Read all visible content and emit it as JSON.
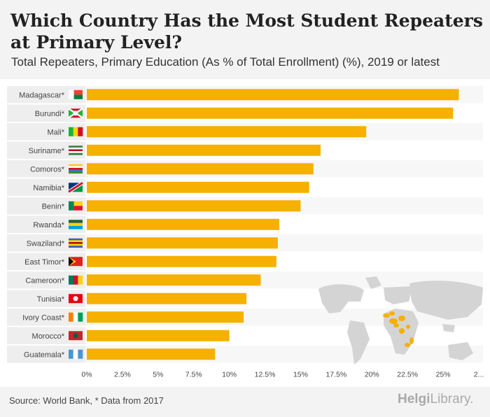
{
  "title": "Which Country Has the Most Student Repeaters at Primary Level?",
  "subtitle": "Total Repeaters, Primary Education (As % of Total Enrollment) (%), 2019 or latest",
  "source": "Source: World Bank, * Data from 2017",
  "brand": {
    "main": "Helgi",
    "suffix": "Library."
  },
  "colors": {
    "bar": "#f5b000",
    "label_bg": "#eeeeee",
    "stripe": "#f7f7f7",
    "map_land": "#d4d4d4",
    "map_highlight": "#f5b000",
    "text": "#444444"
  },
  "chart_data": {
    "type": "bar",
    "orientation": "horizontal",
    "title": "Which Country Has the Most Student Repeaters at Primary Level?",
    "subtitle": "Total Repeaters, Primary Education (As % of Total Enrollment) (%), 2019 or latest",
    "xlabel": "",
    "ylabel": "",
    "xlim": [
      0,
      27.5
    ],
    "ticks": [
      "0%",
      "2.5%",
      "5%",
      "7.5%",
      "10%",
      "12.5%",
      "15%",
      "17.5%",
      "20%",
      "22.5%",
      "25%",
      "2..."
    ],
    "tick_values": [
      0,
      2.5,
      5,
      7.5,
      10,
      12.5,
      15,
      17.5,
      20,
      22.5,
      25,
      27.5
    ],
    "categories": [
      "Madagascar*",
      "Burundi*",
      "Mali*",
      "Suriname*",
      "Comoros*",
      "Namibia*",
      "Benin*",
      "Rwanda*",
      "Swaziland*",
      "East Timor*",
      "Cameroon*",
      "Tunisia*",
      "Ivory Coast*",
      "Morocco*",
      "Guatemala*"
    ],
    "values": [
      26.1,
      25.7,
      19.6,
      16.4,
      15.9,
      15.6,
      15.0,
      13.5,
      13.4,
      13.3,
      12.2,
      11.2,
      11.0,
      10.0,
      9.0
    ],
    "flags": [
      {
        "type": "v",
        "colors": [
          "#ffffff",
          "#fc3d32",
          "#007e3a"
        ]
      },
      {
        "type": "x",
        "colors": [
          "#ce1126",
          "#1eb53a",
          "#ffffff"
        ]
      },
      {
        "type": "v3",
        "colors": [
          "#14b53a",
          "#fcd116",
          "#ce1126"
        ]
      },
      {
        "type": "h5",
        "colors": [
          "#377e3f",
          "#ffffff",
          "#b40a2d",
          "#ffffff",
          "#377e3f"
        ]
      },
      {
        "type": "h4",
        "colors": [
          "#ffc61e",
          "#ffffff",
          "#ce1126",
          "#3a75c4",
          "#3d8e33"
        ]
      },
      {
        "type": "diag",
        "colors": [
          "#003580",
          "#009543",
          "#d21034",
          "#ffffff"
        ]
      },
      {
        "type": "v",
        "colors": [
          "#008751",
          "#fcd116",
          "#e8112d"
        ]
      },
      {
        "type": "h3",
        "colors": [
          "#20603d",
          "#fad201",
          "#00a1de"
        ]
      },
      {
        "type": "h5",
        "colors": [
          "#3e5eb9",
          "#ffd900",
          "#b10c0c",
          "#ffd900",
          "#3e5eb9"
        ]
      },
      {
        "type": "tri",
        "colors": [
          "#dc241f",
          "#ffc726",
          "#000000"
        ]
      },
      {
        "type": "v3",
        "colors": [
          "#007a5e",
          "#ce1126",
          "#fcd116"
        ]
      },
      {
        "type": "solid",
        "colors": [
          "#e70013",
          "#ffffff"
        ]
      },
      {
        "type": "v3",
        "colors": [
          "#f77f00",
          "#ffffff",
          "#009e60"
        ]
      },
      {
        "type": "solid",
        "colors": [
          "#c1272d",
          "#006233"
        ]
      },
      {
        "type": "v3",
        "colors": [
          "#4997d0",
          "#ffffff",
          "#4997d0"
        ]
      }
    ]
  }
}
